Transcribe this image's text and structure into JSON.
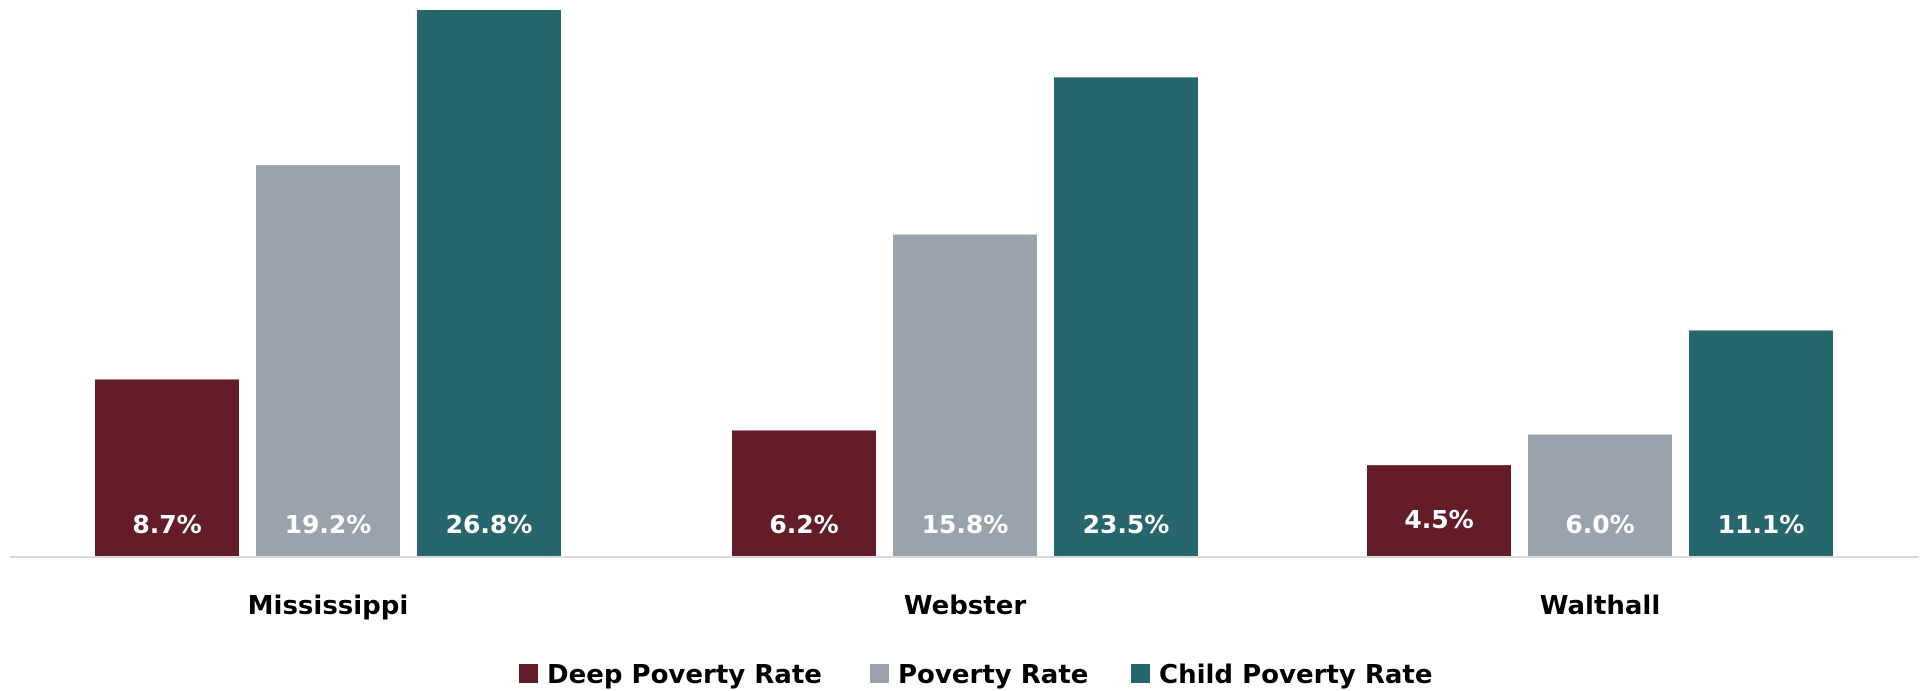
{
  "chart_data": {
    "type": "bar",
    "categories": [
      "Mississippi",
      "Webster",
      "Walthall"
    ],
    "series": [
      {
        "name": "Deep Poverty Rate",
        "color": "#631c28",
        "values": [
          8.7,
          6.2,
          4.5
        ],
        "labels": [
          "8.7%",
          "6.2%",
          "4.5%"
        ]
      },
      {
        "name": "Poverty Rate",
        "color": "#9aa3ab",
        "values": [
          19.2,
          15.8,
          6.0
        ],
        "labels": [
          "19.2%",
          "15.8%",
          "6.0%"
        ]
      },
      {
        "name": "Child Poverty Rate",
        "color": "#28666d",
        "values": [
          26.8,
          23.5,
          11.1
        ],
        "labels": [
          "26.8%",
          "23.5%",
          "11.1%"
        ]
      }
    ],
    "ylim": [
      0,
      26.8
    ],
    "grid": false,
    "legend": "bottom",
    "title": "",
    "xlabel": "",
    "ylabel": ""
  }
}
